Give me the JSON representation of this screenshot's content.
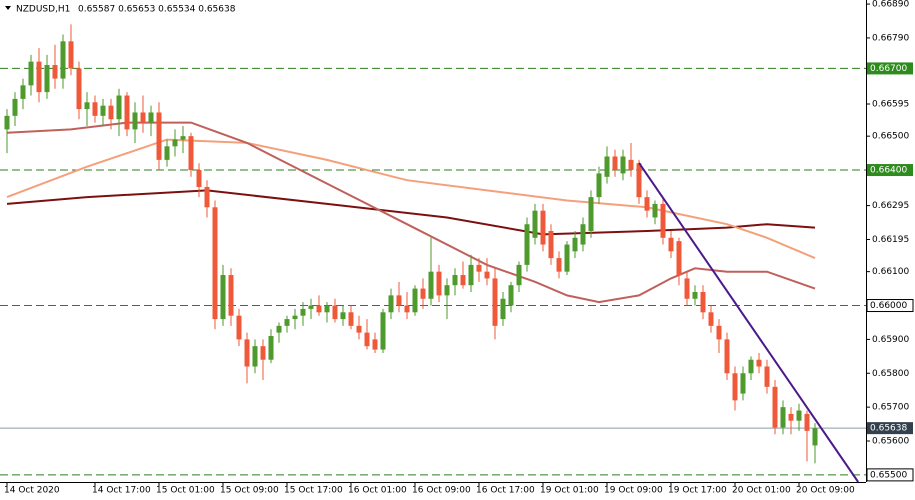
{
  "chart_data": {
    "type": "candlestick",
    "title": "NZDUSD,H1",
    "header_values": "0.65587 0.65653 0.65534 0.65638",
    "up_color": "#4e9a2c",
    "down_color": "#f0583a",
    "ohlc": [
      [
        0.6652,
        0.6658,
        0.6645,
        0.6656
      ],
      [
        0.6656,
        0.6663,
        0.6653,
        0.6661
      ],
      [
        0.6661,
        0.6667,
        0.6658,
        0.6665
      ],
      [
        0.6665,
        0.6674,
        0.6662,
        0.6672
      ],
      [
        0.6672,
        0.6676,
        0.666,
        0.6663
      ],
      [
        0.6663,
        0.6674,
        0.6661,
        0.6671
      ],
      [
        0.6671,
        0.6677,
        0.6664,
        0.6667
      ],
      [
        0.6667,
        0.668,
        0.6664,
        0.6678
      ],
      [
        0.6678,
        0.6683,
        0.6668,
        0.667
      ],
      [
        0.667,
        0.6672,
        0.6655,
        0.6658
      ],
      [
        0.6658,
        0.6663,
        0.6653,
        0.666
      ],
      [
        0.666,
        0.6662,
        0.6654,
        0.6656
      ],
      [
        0.6656,
        0.6661,
        0.6653,
        0.6659
      ],
      [
        0.6659,
        0.6661,
        0.6652,
        0.6655
      ],
      [
        0.6655,
        0.6664,
        0.665,
        0.6662
      ],
      [
        0.6662,
        0.6663,
        0.665,
        0.6652
      ],
      [
        0.6652,
        0.666,
        0.6648,
        0.6657
      ],
      [
        0.6657,
        0.6662,
        0.6651,
        0.6654
      ],
      [
        0.6654,
        0.6659,
        0.665,
        0.6657
      ],
      [
        0.6657,
        0.666,
        0.664,
        0.6643
      ],
      [
        0.6643,
        0.6649,
        0.6641,
        0.6647
      ],
      [
        0.6647,
        0.6652,
        0.6644,
        0.6649
      ],
      [
        0.6649,
        0.6653,
        0.6645,
        0.665
      ],
      [
        0.665,
        0.6651,
        0.6638,
        0.664
      ],
      [
        0.664,
        0.6642,
        0.6632,
        0.6635
      ],
      [
        0.6635,
        0.6637,
        0.6626,
        0.6629
      ],
      [
        0.6629,
        0.6631,
        0.6593,
        0.6596
      ],
      [
        0.6596,
        0.6612,
        0.6594,
        0.6609
      ],
      [
        0.6609,
        0.6611,
        0.6594,
        0.6597
      ],
      [
        0.6597,
        0.6599,
        0.6588,
        0.659
      ],
      [
        0.659,
        0.6592,
        0.6577,
        0.6582
      ],
      [
        0.6582,
        0.659,
        0.658,
        0.6588
      ],
      [
        0.6588,
        0.659,
        0.6578,
        0.6584
      ],
      [
        0.6584,
        0.6593,
        0.6583,
        0.6591
      ],
      [
        0.6592,
        0.6595,
        0.6589,
        0.6594
      ],
      [
        0.6594,
        0.6597,
        0.6592,
        0.6596
      ],
      [
        0.6596,
        0.6599,
        0.6593,
        0.6597
      ],
      [
        0.6597,
        0.6601,
        0.6594,
        0.6599
      ],
      [
        0.6599,
        0.6602,
        0.6596,
        0.66
      ],
      [
        0.66,
        0.6603,
        0.6597,
        0.6598
      ],
      [
        0.6598,
        0.6601,
        0.6595,
        0.66
      ],
      [
        0.66,
        0.6602,
        0.6595,
        0.6596
      ],
      [
        0.6596,
        0.66,
        0.6594,
        0.6598
      ],
      [
        0.6598,
        0.66,
        0.6593,
        0.6594
      ],
      [
        0.6594,
        0.6597,
        0.659,
        0.6592
      ],
      [
        0.6592,
        0.6596,
        0.6587,
        0.6588
      ],
      [
        0.659,
        0.6592,
        0.6586,
        0.6587
      ],
      [
        0.6587,
        0.6599,
        0.6586,
        0.6598
      ],
      [
        0.6598,
        0.6605,
        0.6596,
        0.6603
      ],
      [
        0.6603,
        0.6607,
        0.6598,
        0.66
      ],
      [
        0.66,
        0.6604,
        0.6596,
        0.6598
      ],
      [
        0.6598,
        0.6606,
        0.6597,
        0.6605
      ],
      [
        0.6605,
        0.6608,
        0.6599,
        0.6602
      ],
      [
        0.6602,
        0.662,
        0.66,
        0.661
      ],
      [
        0.661,
        0.6612,
        0.6601,
        0.6603
      ],
      [
        0.6603,
        0.6608,
        0.6596,
        0.6606
      ],
      [
        0.6606,
        0.6611,
        0.6603,
        0.6609
      ],
      [
        0.6609,
        0.6613,
        0.6605,
        0.6606
      ],
      [
        0.6606,
        0.6615,
        0.6604,
        0.6612
      ],
      [
        0.6612,
        0.6614,
        0.6607,
        0.661
      ],
      [
        0.661,
        0.6614,
        0.6606,
        0.6608
      ],
      [
        0.6608,
        0.6611,
        0.659,
        0.6594
      ],
      [
        0.6596,
        0.6604,
        0.6594,
        0.6602
      ],
      [
        0.66,
        0.6607,
        0.6598,
        0.6606
      ],
      [
        0.6606,
        0.6613,
        0.6604,
        0.6612
      ],
      [
        0.6612,
        0.6626,
        0.661,
        0.6624
      ],
      [
        0.662,
        0.663,
        0.6618,
        0.6628
      ],
      [
        0.6628,
        0.663,
        0.6616,
        0.6618
      ],
      [
        0.6622,
        0.6624,
        0.6612,
        0.6614
      ],
      [
        0.6614,
        0.6616,
        0.6608,
        0.661
      ],
      [
        0.661,
        0.6619,
        0.6609,
        0.6618
      ],
      [
        0.6616,
        0.6622,
        0.6614,
        0.662
      ],
      [
        0.6618,
        0.6626,
        0.6616,
        0.6624
      ],
      [
        0.6622,
        0.6634,
        0.662,
        0.6632
      ],
      [
        0.6632,
        0.6641,
        0.663,
        0.6639
      ],
      [
        0.6638,
        0.6647,
        0.6636,
        0.6644
      ],
      [
        0.6644,
        0.6646,
        0.6638,
        0.664
      ],
      [
        0.6639,
        0.6646,
        0.6637,
        0.6644
      ],
      [
        0.6643,
        0.6648,
        0.6638,
        0.664
      ],
      [
        0.6642,
        0.6643,
        0.663,
        0.6632
      ],
      [
        0.6632,
        0.6634,
        0.6626,
        0.6628
      ],
      [
        0.6626,
        0.6631,
        0.6624,
        0.663
      ],
      [
        0.663,
        0.6632,
        0.6618,
        0.662
      ],
      [
        0.662,
        0.6622,
        0.6614,
        0.6616
      ],
      [
        0.6619,
        0.662,
        0.6606,
        0.6609
      ],
      [
        0.6608,
        0.661,
        0.66,
        0.6602
      ],
      [
        0.6602,
        0.6606,
        0.66,
        0.6604
      ],
      [
        0.6604,
        0.6606,
        0.6596,
        0.6598
      ],
      [
        0.6598,
        0.66,
        0.6592,
        0.6594
      ],
      [
        0.6594,
        0.6596,
        0.6586,
        0.659
      ],
      [
        0.659,
        0.6592,
        0.6578,
        0.658
      ],
      [
        0.658,
        0.6582,
        0.6569,
        0.6572
      ],
      [
        0.6574,
        0.6582,
        0.6572,
        0.658
      ],
      [
        0.658,
        0.6585,
        0.6578,
        0.6584
      ],
      [
        0.6584,
        0.6586,
        0.658,
        0.6582
      ],
      [
        0.6582,
        0.6584,
        0.6574,
        0.6576
      ],
      [
        0.6576,
        0.6578,
        0.6562,
        0.6564
      ],
      [
        0.6564,
        0.6572,
        0.6562,
        0.657
      ],
      [
        0.6568,
        0.657,
        0.6562,
        0.6566
      ],
      [
        0.6566,
        0.6571,
        0.6563,
        0.6569
      ],
      [
        0.6568,
        0.6569,
        0.6554,
        0.6563
      ],
      [
        0.65587,
        0.65653,
        0.65534,
        0.65638
      ]
    ],
    "moving_averages": [
      {
        "color": "#7a1010",
        "x": [
          0,
          10,
          25,
          40,
          55,
          67,
          80,
          90,
          95,
          101
        ],
        "values": [
          0.663,
          0.6632,
          0.6634,
          0.663,
          0.6626,
          0.6621,
          0.6622,
          0.6623,
          0.6624,
          0.6623
        ]
      },
      {
        "color": "#f4a07a",
        "x": [
          0,
          10,
          20,
          30,
          40,
          50,
          60,
          70,
          80,
          90,
          95,
          101
        ],
        "values": [
          0.6632,
          0.6641,
          0.6649,
          0.6648,
          0.6643,
          0.6637,
          0.6634,
          0.6631,
          0.6629,
          0.6624,
          0.662,
          0.6614
        ]
      },
      {
        "color": "#c0605a",
        "x": [
          0,
          8,
          15,
          23,
          30,
          40,
          50,
          60,
          66,
          70,
          74,
          79,
          83,
          86,
          90,
          95,
          101
        ],
        "values": [
          0.6651,
          0.6652,
          0.6654,
          0.6654,
          0.6648,
          0.6636,
          0.6624,
          0.6612,
          0.6607,
          0.6603,
          0.6601,
          0.6603,
          0.6608,
          0.6611,
          0.661,
          0.661,
          0.6605
        ]
      }
    ],
    "trendline": {
      "color": "#4b1a8a",
      "x": [
        79,
        106.4
      ],
      "values": [
        0.66421,
        0.65479
      ]
    },
    "levels": [
      {
        "value": 0.667,
        "label": "0.66700",
        "style": "filled"
      },
      {
        "value": 0.664,
        "label": "0.66400",
        "style": "filled"
      },
      {
        "value": 0.66,
        "label": "0.66000",
        "style": "boxed"
      },
      {
        "value": 0.655,
        "label": "0.65500",
        "style": "boxed"
      }
    ],
    "current_price": {
      "value": 0.65638,
      "label": "0.65638"
    },
    "xlim": [
      -0.875,
      107.375
    ],
    "ylim": [
      0.65479,
      0.66902
    ],
    "yticks": [
      {
        "value": 0.6689,
        "label": "0.66890"
      },
      {
        "value": 0.6679,
        "label": "0.66790"
      },
      {
        "value": 0.66595,
        "label": "0.66595"
      },
      {
        "value": 0.665,
        "label": "0.66500"
      },
      {
        "value": 0.66295,
        "label": "0.66295"
      },
      {
        "value": 0.66195,
        "label": "0.66195"
      },
      {
        "value": 0.661,
        "label": "0.66100"
      },
      {
        "value": 0.659,
        "label": "0.65900"
      },
      {
        "value": 0.658,
        "label": "0.65800"
      },
      {
        "value": 0.657,
        "label": "0.65700"
      },
      {
        "value": 0.656,
        "label": "0.65600"
      }
    ],
    "xticks": [
      {
        "value": 0,
        "label": "14 Oct 2020"
      },
      {
        "value": 11,
        "label": "14 Oct 17:00"
      },
      {
        "value": 19,
        "label": "15 Oct 01:00"
      },
      {
        "value": 27,
        "label": "15 Oct 09:00"
      },
      {
        "value": 35,
        "label": "15 Oct 17:00"
      },
      {
        "value": 43,
        "label": "16 Oct 01:00"
      },
      {
        "value": 51,
        "label": "16 Oct 09:00"
      },
      {
        "value": 59,
        "label": "16 Oct 17:00"
      },
      {
        "value": 67,
        "label": "19 Oct 01:00"
      },
      {
        "value": 75,
        "label": "19 Oct 09:00"
      },
      {
        "value": 83,
        "label": "19 Oct 17:00"
      },
      {
        "value": 91,
        "label": "20 Oct 01:00"
      },
      {
        "value": 99,
        "label": "20 Oct 09:00"
      }
    ]
  }
}
